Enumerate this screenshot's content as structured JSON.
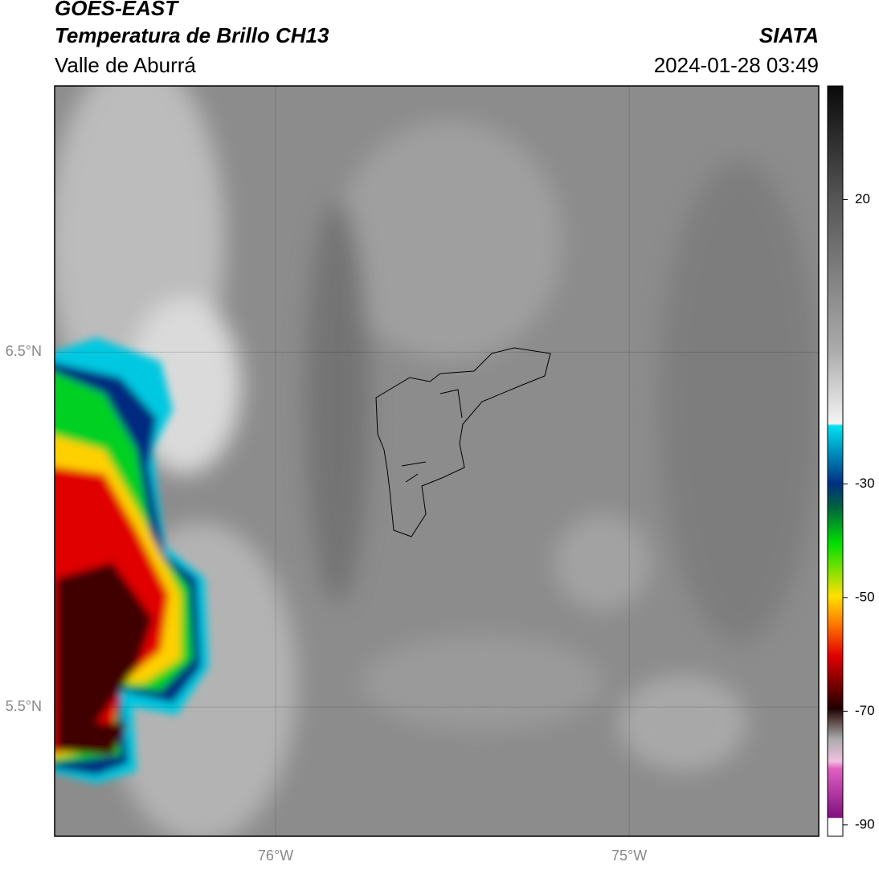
{
  "header": {
    "satellite": "GOES-EAST",
    "product": "Temperatura de Brillo CH13",
    "agency": "SIATA",
    "region": "Valle de Aburrá",
    "datetime": "2024-01-28 03:49"
  },
  "map": {
    "lonlim": [
      -76.625,
      -74.464
    ],
    "latlim": [
      5.136,
      7.25
    ],
    "lonticks": [
      {
        "value": -76,
        "label": "76°W"
      },
      {
        "value": -75,
        "label": "75°W"
      }
    ],
    "latticks": [
      {
        "value": 6.5,
        "label": "6.5°N"
      },
      {
        "value": 5.5,
        "label": "5.5°N"
      }
    ],
    "grid": true
  },
  "colorbar": {
    "lim": [
      -92,
      40
    ],
    "ticks": [
      20,
      -30,
      -50,
      -70,
      -90
    ]
  }
}
